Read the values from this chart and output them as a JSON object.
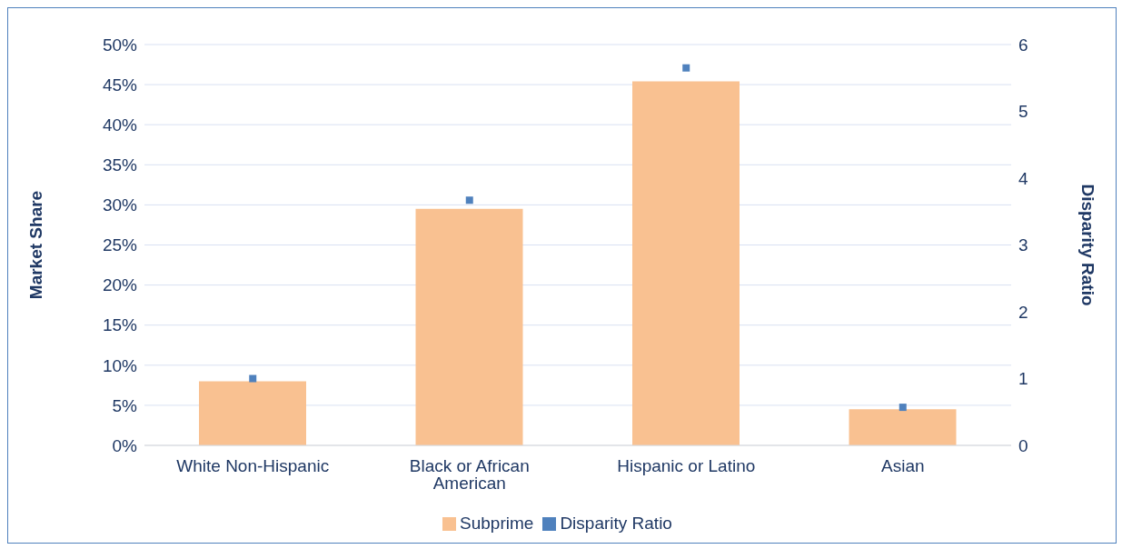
{
  "chart_data": {
    "type": "bar",
    "ylabel": "Market Share",
    "y2label": "Disparity Ratio",
    "categories": [
      "White Non-Hispanic",
      "Black or African American",
      "Hispanic or Latino",
      "Asian"
    ],
    "series": [
      {
        "name": "Subprime",
        "color": "#f9c191",
        "values": [
          8.0,
          29.5,
          45.4,
          4.5
        ]
      },
      {
        "name": "Disparity Ratio",
        "type": "scatter",
        "axis": "y2",
        "marker": "square",
        "color": "#4f81bd",
        "values": [
          1.0,
          3.67,
          5.65,
          0.57
        ]
      }
    ],
    "ylim": [
      0,
      50
    ],
    "yticks": [
      {
        "value": 0,
        "label": "0%"
      },
      {
        "value": 5,
        "label": "5%"
      },
      {
        "value": 10,
        "label": "10%"
      },
      {
        "value": 15,
        "label": "15%"
      },
      {
        "value": 20,
        "label": "20%"
      },
      {
        "value": 25,
        "label": "25%"
      },
      {
        "value": 30,
        "label": "30%"
      },
      {
        "value": 35,
        "label": "35%"
      },
      {
        "value": 40,
        "label": "40%"
      },
      {
        "value": 45,
        "label": "45%"
      },
      {
        "value": 50,
        "label": "50%"
      }
    ],
    "y2lim": [
      0,
      6
    ],
    "y2ticks": [
      0,
      1,
      2,
      3,
      4,
      5,
      6
    ],
    "grid": "y",
    "legend": "bottom"
  }
}
